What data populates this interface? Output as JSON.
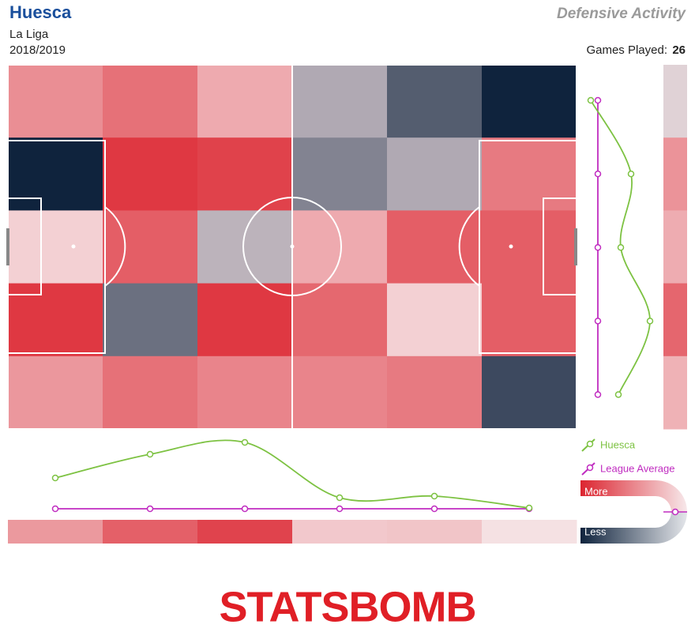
{
  "header": {
    "team": "Huesca",
    "title": "Defensive Activity",
    "league": "La Liga",
    "season": "2018/2019",
    "games_label": "Games Played:",
    "games": 26
  },
  "chart_data": [
    {
      "type": "heatmap",
      "values": [
        [
          0.45,
          0.6,
          0.3,
          -0.3,
          -0.7,
          -1
        ],
        [
          -1,
          0.9,
          0.85,
          -0.5,
          -0.3,
          0.55
        ],
        [
          0.1,
          0.7,
          -0.25,
          0.3,
          0.7,
          0.7
        ],
        [
          0.9,
          -0.6,
          0.9,
          0.65,
          0.1,
          0.7
        ],
        [
          0.4,
          0.6,
          0.5,
          0.5,
          0.55,
          -0.8
        ]
      ],
      "zlim": [
        -1,
        1
      ]
    },
    {
      "type": "line",
      "series": [
        {
          "name": "Huesca",
          "color": "#7dc242",
          "values": [
            13.9,
            16.9,
            18.4,
            11.4,
            11.6,
            10.1
          ]
        },
        {
          "name": "League Average",
          "color": "#c02cc0",
          "values": [
            10,
            10,
            10,
            10,
            10,
            10
          ]
        }
      ],
      "ylim": [
        8.4,
        19
      ]
    },
    {
      "type": "vline",
      "series": [
        {
          "name": "Huesca",
          "color": "#7dc242",
          "values": [
            9.1,
            14.2,
            12.9,
            16.6,
            12.6
          ]
        },
        {
          "name": "League Average",
          "color": "#c02cc0",
          "values": [
            10,
            10,
            10,
            10,
            10
          ]
        }
      ],
      "xlim": [
        8.4,
        19
      ]
    }
  ],
  "legend": {
    "more": "More",
    "less": "Less"
  },
  "logo": "STATSBOMB"
}
